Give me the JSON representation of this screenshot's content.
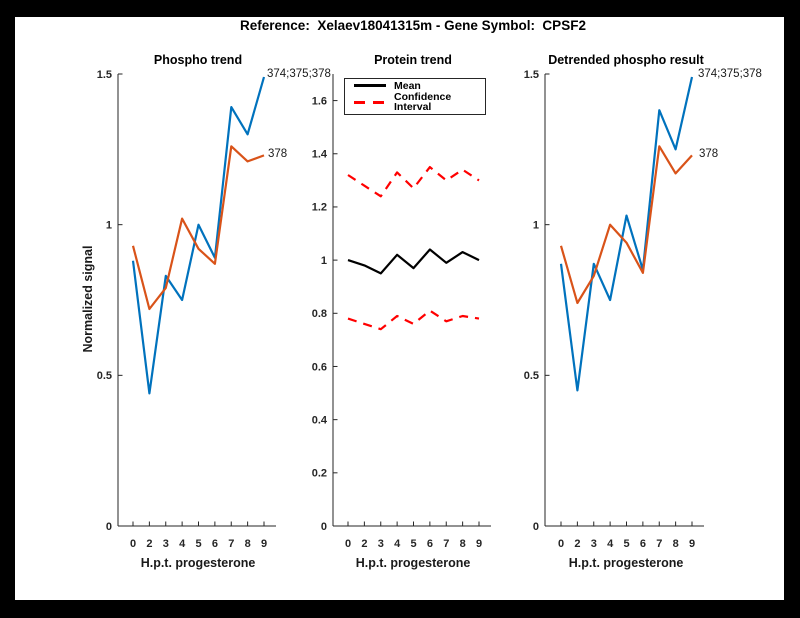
{
  "title": "Reference:  Xelaev18041315m - Gene Symbol:  CPSF2",
  "colors": {
    "blue": "#0072BD",
    "orange": "#D95319",
    "red": "#FF0000",
    "black": "#000000",
    "axis": "#262626",
    "background": "#000000",
    "figure": "#ffffff"
  },
  "chart_data": [
    {
      "type": "line",
      "title": "Phospho trend",
      "xlabel": "H.p.t. progesterone",
      "ylabel": "Normalized signal",
      "categories": [
        "0",
        "2",
        "3",
        "4",
        "5",
        "6",
        "7",
        "8",
        "9"
      ],
      "ylim": [
        0,
        1.5
      ],
      "yticks": [
        "0",
        "0.5",
        "1",
        "1.5"
      ],
      "grid": false,
      "series": [
        {
          "name": "374;375;378",
          "color": "#0072BD",
          "dash": "solid",
          "end_label": "374;375;378",
          "values": [
            0.88,
            0.44,
            0.83,
            0.75,
            1.0,
            0.89,
            1.39,
            1.3,
            1.49
          ]
        },
        {
          "name": "378",
          "color": "#D95319",
          "dash": "solid",
          "end_label": "378",
          "values": [
            0.93,
            0.72,
            0.79,
            1.02,
            0.92,
            0.87,
            1.26,
            1.21,
            1.23
          ]
        }
      ]
    },
    {
      "type": "line",
      "title": "Protein trend",
      "xlabel": "H.p.t. progesterone",
      "ylabel": "",
      "categories": [
        "0",
        "2",
        "3",
        "4",
        "5",
        "6",
        "7",
        "8",
        "9"
      ],
      "ylim": [
        0,
        1.7
      ],
      "yticks": [
        "0",
        "0.2",
        "0.4",
        "0.6",
        "0.8",
        "1",
        "1.2",
        "1.4",
        "1.6"
      ],
      "grid": false,
      "legend": {
        "position": "top-left",
        "entries": [
          {
            "label": "Mean",
            "color": "#000000",
            "dash": "solid"
          },
          {
            "label": "Confidence Interval",
            "color": "#FF0000",
            "dash": "dashed"
          }
        ]
      },
      "series": [
        {
          "name": "Mean",
          "color": "#000000",
          "dash": "solid",
          "values": [
            1.0,
            0.98,
            0.95,
            1.02,
            0.97,
            1.04,
            0.99,
            1.03,
            1.0
          ]
        },
        {
          "name": "Confidence Interval upper",
          "color": "#FF0000",
          "dash": "dashed",
          "values": [
            1.32,
            1.28,
            1.24,
            1.33,
            1.27,
            1.35,
            1.3,
            1.34,
            1.3
          ]
        },
        {
          "name": "Confidence Interval lower",
          "color": "#FF0000",
          "dash": "dashed",
          "values": [
            0.78,
            0.76,
            0.74,
            0.79,
            0.76,
            0.81,
            0.77,
            0.79,
            0.78
          ]
        }
      ]
    },
    {
      "type": "line",
      "title": "Detrended phospho result",
      "xlabel": "H.p.t. progesterone",
      "ylabel": "",
      "categories": [
        "0",
        "2",
        "3",
        "4",
        "5",
        "6",
        "7",
        "8",
        "9"
      ],
      "ylim": [
        0,
        1.5
      ],
      "yticks": [
        "0",
        "0.5",
        "1",
        "1.5"
      ],
      "grid": false,
      "series": [
        {
          "name": "374;375;378",
          "color": "#0072BD",
          "dash": "solid",
          "end_label": "374;375;378",
          "values": [
            0.87,
            0.45,
            0.87,
            0.75,
            1.03,
            0.85,
            1.38,
            1.25,
            1.49
          ]
        },
        {
          "name": "378",
          "color": "#D95319",
          "dash": "solid",
          "end_label": "378",
          "values": [
            0.93,
            0.74,
            0.83,
            1.0,
            0.94,
            0.84,
            1.26,
            1.17,
            1.23
          ]
        }
      ]
    }
  ]
}
